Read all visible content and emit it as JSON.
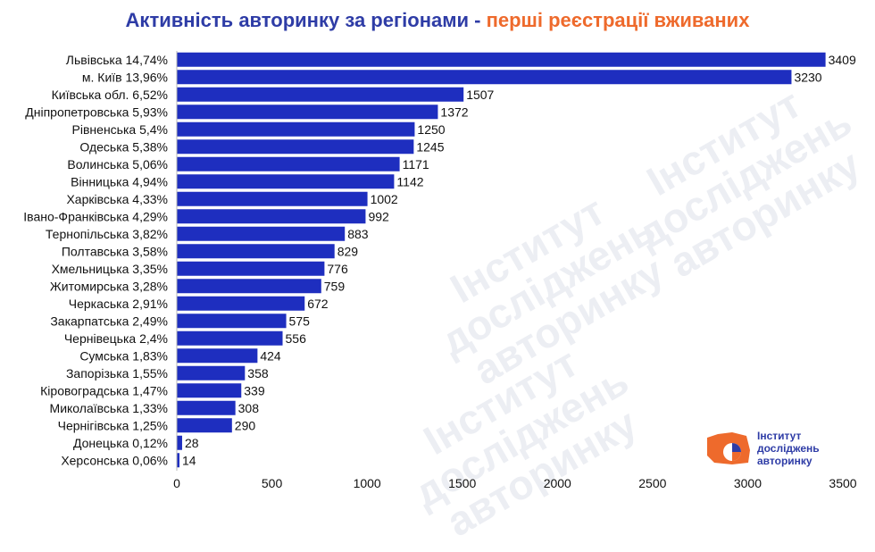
{
  "title": {
    "main": "Активність авторинку за регіонами",
    "separator": " - ",
    "accent": "перші реєстрації вживаних"
  },
  "logo": {
    "line1": "Інститут",
    "line2": "досліджень",
    "line3": "авторинку"
  },
  "colors": {
    "bar": "#1e2ebf",
    "title_main": "#2e3ca6",
    "title_accent": "#ee6a2c",
    "logo_orange": "#ee6a2c"
  },
  "chart_data": {
    "type": "bar",
    "orientation": "horizontal",
    "categories": [
      "Львівська 14,74%",
      "м. Київ 13,96%",
      "Київська обл. 6,52%",
      "Дніпропетровська 5,93%",
      "Рівненська 5,4%",
      "Одеська 5,38%",
      "Волинська 5,06%",
      "Вінницька 4,94%",
      "Харківська 4,33%",
      "Івано-Франківська 4,29%",
      "Тернопільська 3,82%",
      "Полтавська 3,58%",
      "Хмельницька 3,35%",
      "Житомирська 3,28%",
      "Черкаська 2,91%",
      "Закарпатська 2,49%",
      "Чернівецька 2,4%",
      "Сумська 1,83%",
      "Запорізька 1,55%",
      "Кіровоградська 1,47%",
      "Миколаївська 1,33%",
      "Чернігівська 1,25%",
      "Донецька 0,12%",
      "Херсонська 0,06%"
    ],
    "values": [
      3409,
      3230,
      1507,
      1372,
      1250,
      1245,
      1171,
      1142,
      1002,
      992,
      883,
      829,
      776,
      759,
      672,
      575,
      556,
      424,
      358,
      339,
      308,
      290,
      28,
      14
    ],
    "xlim": [
      0,
      3500
    ],
    "xticks": [
      0,
      500,
      1000,
      1500,
      2000,
      2500,
      3000,
      3500
    ],
    "grid": false,
    "legend": "none"
  }
}
